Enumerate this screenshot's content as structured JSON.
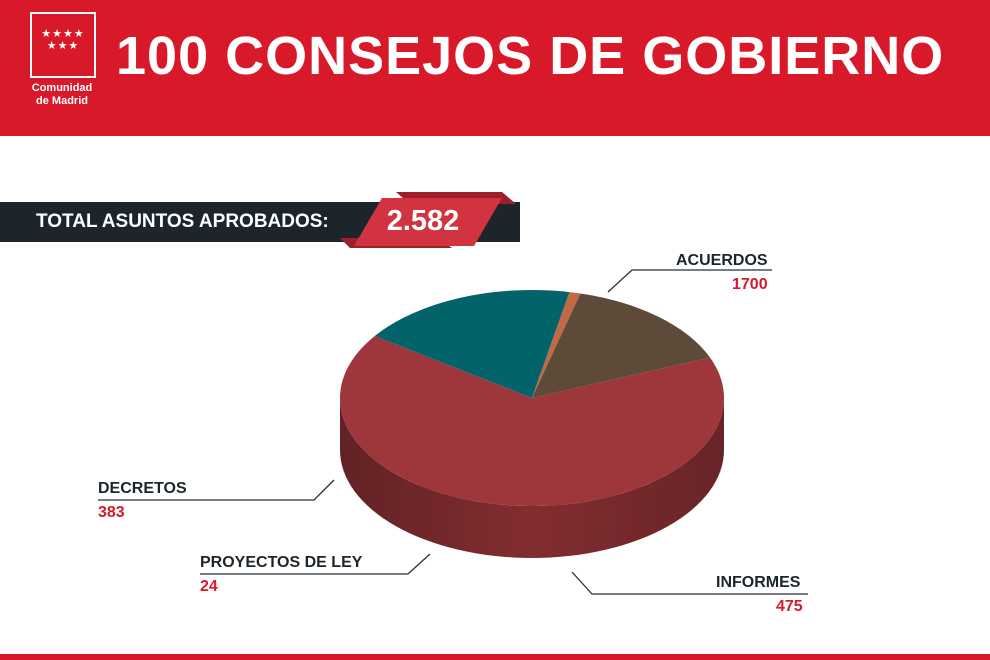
{
  "header": {
    "title": "100 CONSEJOS DE GOBIERNO",
    "logo_text_line1": "Comunidad",
    "logo_text_line2": "de Madrid",
    "logo_stars": "★★★★\n★★★",
    "background_color": "#d7192a"
  },
  "total": {
    "label": "TOTAL ASUNTOS APROBADOS:",
    "value": "2.582"
  },
  "chart_data": {
    "type": "pie",
    "title": "",
    "categories": [
      "ACUERDOS",
      "INFORMES",
      "PROYECTOS DE LEY",
      "DECRETOS"
    ],
    "values": [
      1700,
      475,
      24,
      383
    ],
    "labels": [
      "1700",
      "475",
      "24",
      "383"
    ],
    "colors": [
      "#9e373b",
      "#03636b",
      "#c06a45",
      "#5d4a38"
    ],
    "style": "3d"
  }
}
